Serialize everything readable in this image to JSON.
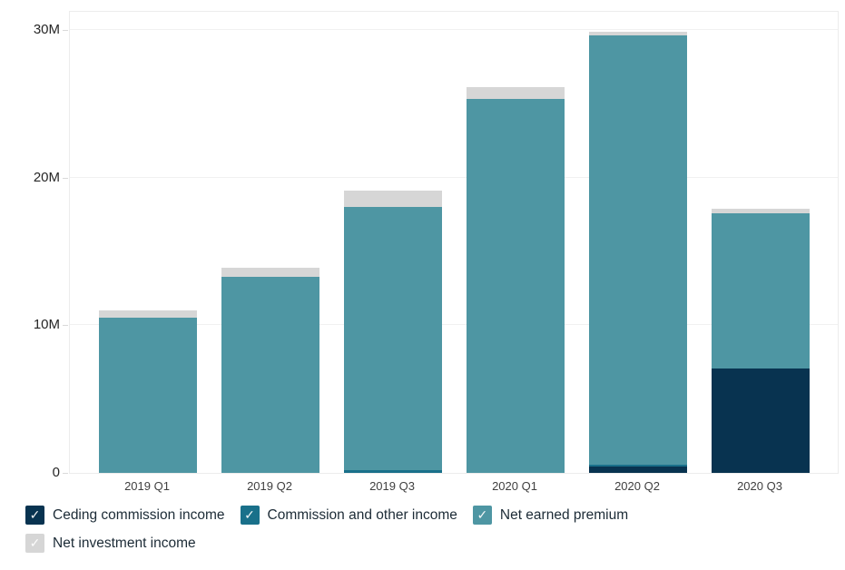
{
  "chart_data": {
    "type": "bar",
    "stacked": true,
    "title": "",
    "xlabel": "",
    "ylabel": "",
    "categories": [
      "2019 Q1",
      "2019 Q2",
      "2019 Q3",
      "2020 Q1",
      "2020 Q2",
      "2020 Q3"
    ],
    "series": [
      {
        "name": "Ceding commission income",
        "color": "#083350",
        "values": [
          0,
          0,
          0,
          0,
          0.4,
          7.1
        ]
      },
      {
        "name": "Commission and other income",
        "color": "#19708a",
        "values": [
          0,
          0,
          0.2,
          0,
          0.15,
          0
        ]
      },
      {
        "name": "Net earned premium",
        "color": "#4e96a3",
        "values": [
          10.5,
          13.3,
          17.8,
          25.3,
          29.1,
          10.5
        ]
      },
      {
        "name": "Net investment income",
        "color": "#d6d6d6",
        "values": [
          0.5,
          0.6,
          1.1,
          0.8,
          0.25,
          0.3
        ]
      }
    ],
    "totals": [
      11.0,
      13.9,
      19.1,
      26.1,
      29.9,
      17.9
    ],
    "ylim": [
      0,
      30
    ],
    "y_ticks": [
      {
        "label": "0",
        "value": 0
      },
      {
        "label": "10M",
        "value": 10
      },
      {
        "label": "20M",
        "value": 20
      },
      {
        "label": "30M",
        "value": 30
      }
    ],
    "grid": true,
    "legend_position": "bottom",
    "legend_rows": [
      [
        0,
        1,
        2
      ],
      [
        3
      ]
    ],
    "legend_check_glyph": "✓"
  },
  "colors": {
    "gridline": "#f1f1f1",
    "plot_border": "#ececec",
    "background": "#ffffff",
    "axis_text": "#262626"
  }
}
